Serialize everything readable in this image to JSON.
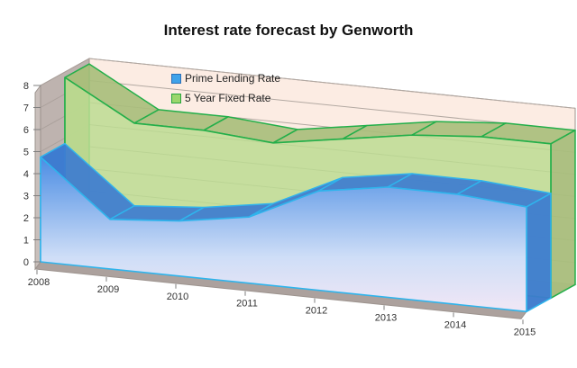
{
  "title": "Interest rate forecast by Genworth",
  "chart_data": {
    "type": "area",
    "projection": "3d",
    "title": "Interest rate forecast by Genworth",
    "categories": [
      "2008",
      "2009",
      "2010",
      "2011",
      "2012",
      "2013",
      "2014",
      "2015"
    ],
    "series": [
      {
        "name": "Prime Lending Rate",
        "values": [
          4.75,
          2.25,
          2.5,
          3.0,
          4.5,
          5.0,
          5.0,
          4.75
        ],
        "colors": {
          "border": "#2fb4ec",
          "ribbon": "#3d7cd0",
          "face_top": "#4b8de4",
          "face_mid": "#cfdef7",
          "face_bottom": "#f1e7f5",
          "swatch_fill": "#3fa3ea",
          "swatch_border": "#2a6fb8"
        }
      },
      {
        "name": "5 Year Fixed Rate",
        "values": [
          7.75,
          6.0,
          6.0,
          5.75,
          6.25,
          6.75,
          7.0,
          7.0
        ],
        "colors": {
          "border": "#23af4a",
          "ribbon": "#a9be7c",
          "face": "#bcdc92",
          "swatch_fill": "#9bd66d",
          "swatch_border": "#27a53d"
        }
      }
    ],
    "xlabel": "",
    "ylabel": "",
    "ylim": [
      0,
      8
    ],
    "y_ticks": [
      "0",
      "1",
      "2",
      "3",
      "4",
      "5",
      "6",
      "7",
      "8"
    ],
    "grid": true,
    "legend_position": "top-inside"
  },
  "colors": {
    "back_wall": "#fcece3",
    "side_wall": "#beb3af",
    "floor": "#b6aca9",
    "floor_front": "#aca19d",
    "wall_front": "#c9bfbb",
    "gridline": "#b3a9a2",
    "side_gridline": "#aaa09b",
    "wall_edge": "#9c938e",
    "axis_text": "#333333",
    "tick": "#7f7f7f"
  }
}
